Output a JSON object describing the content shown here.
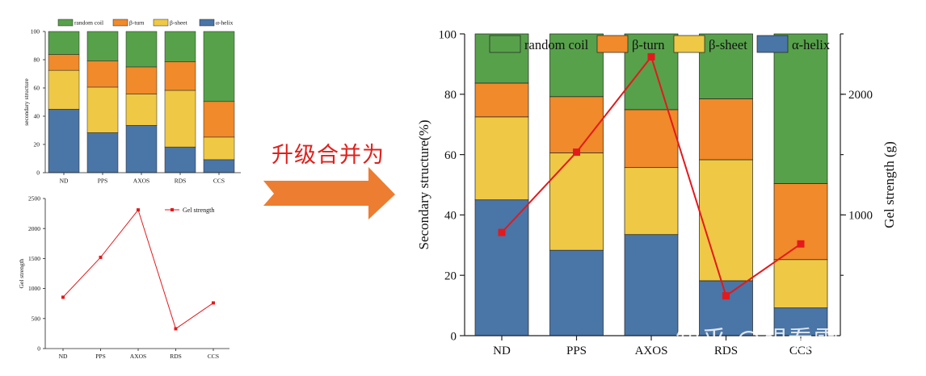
{
  "colors": {
    "random_coil": "#57a14b",
    "beta_turn": "#f08a2a",
    "beta_sheet": "#efc945",
    "alpha_helix": "#4a75a7",
    "gel": "#e4191c",
    "arrow": "#ed7d31"
  },
  "arrow_caption": "升级合并为",
  "watermark": "知乎 @想看雪的瓜",
  "chart_data": [
    {
      "type": "bar",
      "stacked": true,
      "categories": [
        "ND",
        "PPS",
        "AXOS",
        "RDS",
        "CCS"
      ],
      "series": [
        {
          "name": "α-helix",
          "values": [
            45,
            28.3,
            33.5,
            18.2,
            9.2
          ]
        },
        {
          "name": "β-sheet",
          "values": [
            27.5,
            32.3,
            22.2,
            40.1,
            16.0
          ]
        },
        {
          "name": "β-turn",
          "values": [
            11.2,
            18.6,
            19.2,
            20.2,
            25.2
          ]
        },
        {
          "name": "random coil",
          "values": [
            16.3,
            20.8,
            25.1,
            21.5,
            49.6
          ]
        }
      ],
      "ylabel": "secondary structure",
      "ylim": [
        0,
        100
      ],
      "yticks": [
        "0",
        "20",
        "40",
        "60",
        "80",
        "100"
      ],
      "legend": "top"
    },
    {
      "type": "line",
      "categories": [
        "ND",
        "PPS",
        "AXOS",
        "RDS",
        "CCS"
      ],
      "series": [
        {
          "name": "Gel strength",
          "values": [
            855,
            1520,
            2310,
            330,
            760
          ]
        }
      ],
      "ylabel": "Gel strength",
      "ylim": [
        0,
        2500
      ],
      "yticks": [
        "0",
        "500",
        "1000",
        "1500",
        "2000",
        "2500"
      ],
      "legend": "top-right"
    },
    {
      "type": "bar",
      "stacked": true,
      "categories": [
        "ND",
        "PPS",
        "AXOS",
        "RDS",
        "CCS"
      ],
      "series": [
        {
          "name": "α-helix",
          "values": [
            45,
            28.3,
            33.5,
            18.2,
            9.2
          ]
        },
        {
          "name": "β-sheet",
          "values": [
            27.5,
            32.3,
            22.2,
            40.1,
            16.0
          ]
        },
        {
          "name": "β-turn",
          "values": [
            11.2,
            18.6,
            19.2,
            20.2,
            25.2
          ]
        },
        {
          "name": "random coil",
          "values": [
            16.3,
            20.8,
            25.1,
            21.5,
            49.6
          ]
        }
      ],
      "line_series": {
        "name": "Gel strength",
        "values": [
          855,
          1520,
          2310,
          330,
          760
        ]
      },
      "ylabel": "Secondary structure(%)",
      "ylim": [
        0,
        100
      ],
      "yticks": [
        "0",
        "20",
        "40",
        "60",
        "80",
        "100"
      ],
      "y2label": "Gel strength (g)",
      "y2lim": [
        0,
        2500
      ],
      "y2ticks": [
        "1000",
        "2000"
      ],
      "legend": "top"
    }
  ]
}
